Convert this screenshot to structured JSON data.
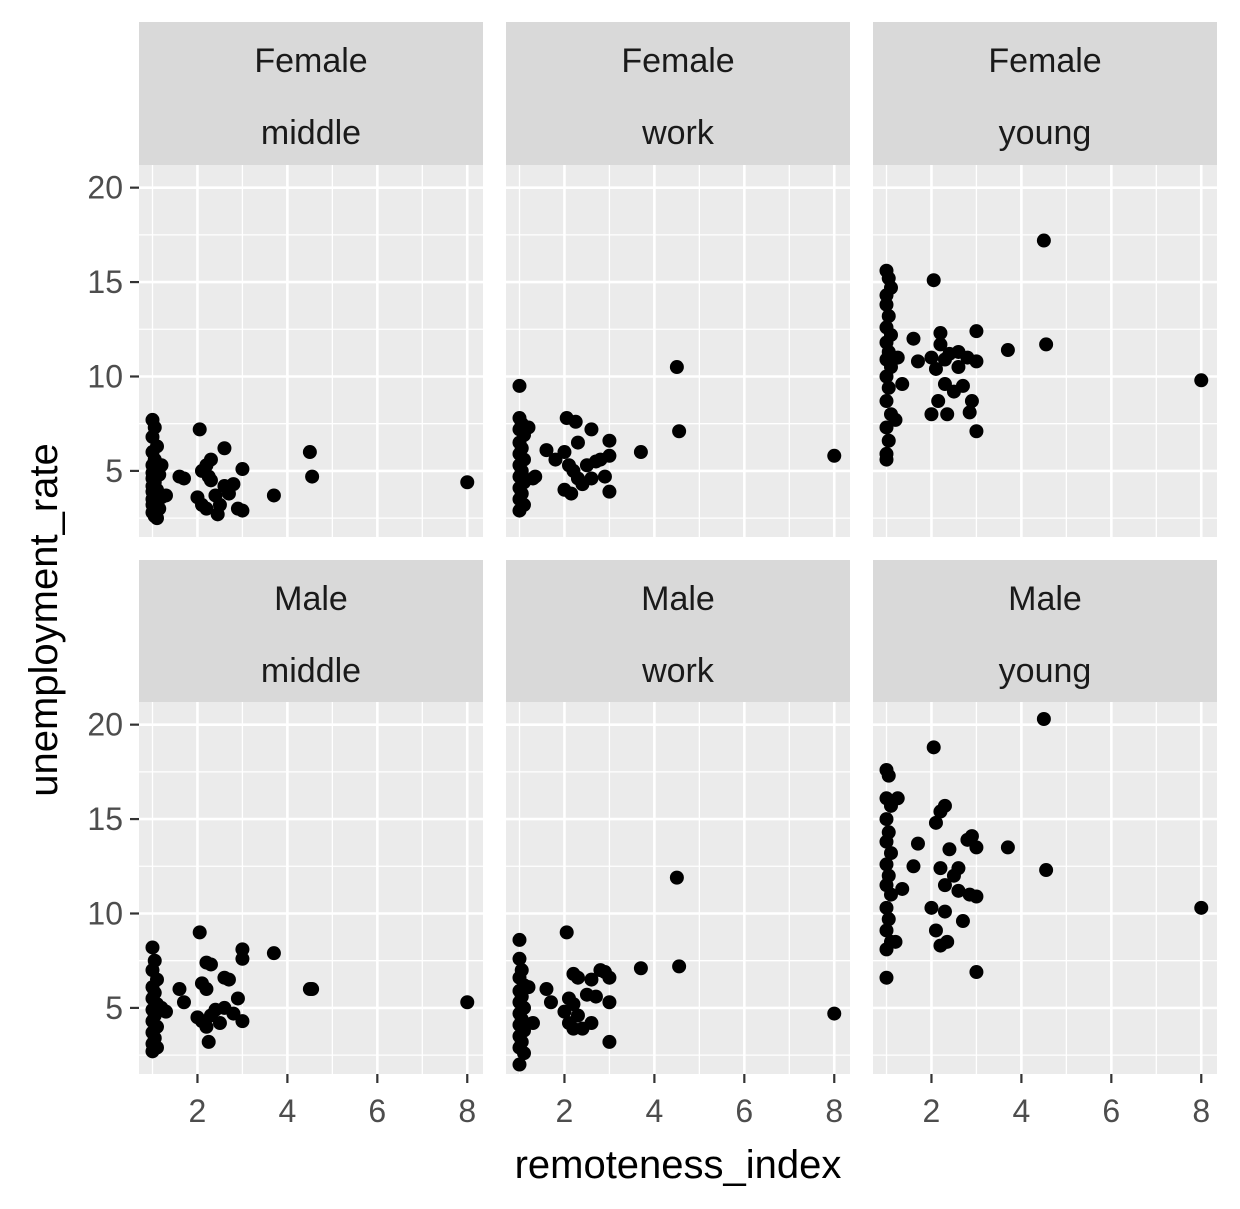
{
  "chart_data": {
    "type": "scatter",
    "facet_layout": "grid",
    "xlabel": "remoteness_index",
    "ylabel": "unemployment_rate",
    "x_ticks": [
      2,
      4,
      6,
      8
    ],
    "y_ticks": [
      5,
      10,
      15,
      20
    ],
    "xlim": [
      0.7,
      8.35
    ],
    "ylim": [
      1.5,
      21.2
    ],
    "colors": {
      "panel": "#ebebeb",
      "strip": "#d9d9d9",
      "grid": "#ffffff",
      "point": "#000000"
    },
    "panels": [
      {
        "label_top": "Female",
        "label_bottom": "middle",
        "points": [
          [
            1.0,
            7.7
          ],
          [
            1.05,
            7.3
          ],
          [
            1.0,
            6.8
          ],
          [
            1.1,
            6.3
          ],
          [
            1.0,
            6.0
          ],
          [
            1.05,
            5.6
          ],
          [
            1.0,
            5.3
          ],
          [
            1.1,
            5.1
          ],
          [
            1.0,
            4.9
          ],
          [
            1.15,
            4.8
          ],
          [
            1.0,
            4.6
          ],
          [
            1.05,
            4.4
          ],
          [
            1.0,
            4.2
          ],
          [
            1.1,
            4.0
          ],
          [
            1.0,
            3.9
          ],
          [
            1.05,
            3.7
          ],
          [
            1.0,
            3.5
          ],
          [
            1.1,
            3.4
          ],
          [
            1.0,
            3.2
          ],
          [
            1.15,
            3.0
          ],
          [
            1.0,
            2.8
          ],
          [
            1.05,
            2.6
          ],
          [
            1.1,
            2.5
          ],
          [
            1.2,
            3.6
          ],
          [
            1.3,
            3.7
          ],
          [
            1.2,
            5.3
          ],
          [
            1.6,
            4.7
          ],
          [
            1.7,
            4.6
          ],
          [
            2.05,
            7.2
          ],
          [
            2.1,
            5.0
          ],
          [
            2.2,
            5.3
          ],
          [
            2.3,
            5.6
          ],
          [
            2.0,
            3.6
          ],
          [
            2.1,
            3.2
          ],
          [
            2.2,
            3.0
          ],
          [
            2.3,
            4.5
          ],
          [
            2.25,
            4.7
          ],
          [
            2.4,
            3.7
          ],
          [
            2.5,
            3.2
          ],
          [
            2.6,
            6.2
          ],
          [
            2.6,
            4.2
          ],
          [
            2.7,
            3.8
          ],
          [
            2.8,
            4.3
          ],
          [
            2.9,
            3.0
          ],
          [
            3.0,
            5.1
          ],
          [
            3.0,
            2.9
          ],
          [
            2.45,
            2.7
          ],
          [
            3.7,
            3.7
          ],
          [
            4.5,
            6.0
          ],
          [
            4.55,
            4.7
          ],
          [
            8.0,
            4.4
          ]
        ]
      },
      {
        "label_top": "Female",
        "label_bottom": "work",
        "points": [
          [
            1.0,
            9.5
          ],
          [
            1.0,
            7.8
          ],
          [
            1.05,
            7.5
          ],
          [
            1.0,
            7.2
          ],
          [
            1.1,
            6.9
          ],
          [
            1.0,
            6.5
          ],
          [
            1.05,
            6.2
          ],
          [
            1.0,
            5.9
          ],
          [
            1.1,
            5.6
          ],
          [
            1.0,
            5.3
          ],
          [
            1.05,
            5.0
          ],
          [
            1.0,
            4.7
          ],
          [
            1.1,
            4.4
          ],
          [
            1.0,
            4.1
          ],
          [
            1.05,
            3.8
          ],
          [
            1.0,
            3.5
          ],
          [
            1.1,
            3.2
          ],
          [
            1.0,
            2.9
          ],
          [
            1.2,
            7.3
          ],
          [
            1.3,
            4.6
          ],
          [
            1.35,
            4.7
          ],
          [
            1.6,
            6.1
          ],
          [
            1.8,
            5.6
          ],
          [
            2.0,
            6.0
          ],
          [
            2.05,
            7.8
          ],
          [
            2.25,
            7.6
          ],
          [
            2.1,
            5.3
          ],
          [
            2.2,
            5.0
          ],
          [
            2.3,
            6.5
          ],
          [
            2.0,
            4.0
          ],
          [
            2.15,
            3.8
          ],
          [
            2.3,
            4.6
          ],
          [
            2.4,
            4.3
          ],
          [
            2.5,
            5.3
          ],
          [
            2.6,
            7.2
          ],
          [
            2.6,
            4.6
          ],
          [
            2.7,
            5.5
          ],
          [
            2.8,
            5.6
          ],
          [
            2.9,
            4.7
          ],
          [
            3.0,
            6.6
          ],
          [
            3.0,
            5.8
          ],
          [
            3.0,
            3.9
          ],
          [
            3.7,
            6.0
          ],
          [
            4.5,
            10.5
          ],
          [
            4.55,
            7.1
          ],
          [
            8.0,
            5.8
          ]
        ]
      },
      {
        "label_top": "Female",
        "label_bottom": "young",
        "points": [
          [
            1.0,
            15.6
          ],
          [
            1.05,
            15.2
          ],
          [
            1.0,
            14.3
          ],
          [
            1.1,
            14.7
          ],
          [
            1.0,
            13.8
          ],
          [
            1.05,
            13.2
          ],
          [
            1.0,
            12.6
          ],
          [
            1.1,
            12.2
          ],
          [
            1.0,
            11.8
          ],
          [
            1.05,
            11.3
          ],
          [
            1.0,
            10.9
          ],
          [
            1.1,
            10.5
          ],
          [
            1.0,
            10.0
          ],
          [
            1.05,
            9.4
          ],
          [
            1.0,
            8.7
          ],
          [
            1.1,
            8.0
          ],
          [
            1.0,
            7.3
          ],
          [
            1.05,
            6.6
          ],
          [
            1.0,
            5.9
          ],
          [
            1.0,
            5.6
          ],
          [
            1.2,
            7.7
          ],
          [
            1.25,
            11.0
          ],
          [
            1.35,
            9.6
          ],
          [
            1.6,
            12.0
          ],
          [
            1.7,
            10.8
          ],
          [
            2.05,
            15.1
          ],
          [
            2.0,
            11.0
          ],
          [
            2.1,
            10.4
          ],
          [
            2.2,
            12.3
          ],
          [
            2.2,
            11.7
          ],
          [
            2.3,
            10.9
          ],
          [
            2.0,
            8.0
          ],
          [
            2.15,
            8.7
          ],
          [
            2.3,
            9.6
          ],
          [
            2.35,
            8.0
          ],
          [
            2.4,
            11.2
          ],
          [
            2.5,
            9.2
          ],
          [
            2.6,
            11.3
          ],
          [
            2.6,
            10.5
          ],
          [
            2.7,
            9.5
          ],
          [
            2.8,
            11.0
          ],
          [
            2.85,
            8.1
          ],
          [
            2.9,
            8.7
          ],
          [
            3.0,
            12.4
          ],
          [
            3.0,
            10.8
          ],
          [
            3.0,
            7.1
          ],
          [
            3.7,
            11.4
          ],
          [
            4.5,
            17.2
          ],
          [
            4.55,
            11.7
          ],
          [
            8.0,
            9.8
          ]
        ]
      },
      {
        "label_top": "Male",
        "label_bottom": "middle",
        "points": [
          [
            1.0,
            8.2
          ],
          [
            1.05,
            7.5
          ],
          [
            1.0,
            7.0
          ],
          [
            1.1,
            6.5
          ],
          [
            1.0,
            6.1
          ],
          [
            1.05,
            5.8
          ],
          [
            1.0,
            5.5
          ],
          [
            1.1,
            5.2
          ],
          [
            1.0,
            4.9
          ],
          [
            1.05,
            4.6
          ],
          [
            1.0,
            4.3
          ],
          [
            1.1,
            4.0
          ],
          [
            1.0,
            3.7
          ],
          [
            1.05,
            3.4
          ],
          [
            1.0,
            3.1
          ],
          [
            1.1,
            2.9
          ],
          [
            1.0,
            2.7
          ],
          [
            1.2,
            5.0
          ],
          [
            1.3,
            4.8
          ],
          [
            1.6,
            6.0
          ],
          [
            1.7,
            5.3
          ],
          [
            2.05,
            9.0
          ],
          [
            2.2,
            7.4
          ],
          [
            2.3,
            7.3
          ],
          [
            2.1,
            6.3
          ],
          [
            2.2,
            6.0
          ],
          [
            2.0,
            4.5
          ],
          [
            2.1,
            4.3
          ],
          [
            2.2,
            4.0
          ],
          [
            2.3,
            4.6
          ],
          [
            2.25,
            3.2
          ],
          [
            2.4,
            4.9
          ],
          [
            2.5,
            4.2
          ],
          [
            2.6,
            6.6
          ],
          [
            2.6,
            5.0
          ],
          [
            2.7,
            6.5
          ],
          [
            2.8,
            4.7
          ],
          [
            2.9,
            5.5
          ],
          [
            3.0,
            8.1
          ],
          [
            3.0,
            7.6
          ],
          [
            3.0,
            4.3
          ],
          [
            3.7,
            7.9
          ],
          [
            4.5,
            6.0
          ],
          [
            4.55,
            6.0
          ],
          [
            8.0,
            5.3
          ]
        ]
      },
      {
        "label_top": "Male",
        "label_bottom": "work",
        "points": [
          [
            1.0,
            8.6
          ],
          [
            1.0,
            7.6
          ],
          [
            1.05,
            7.0
          ],
          [
            1.0,
            6.6
          ],
          [
            1.1,
            6.2
          ],
          [
            1.0,
            5.9
          ],
          [
            1.05,
            5.6
          ],
          [
            1.0,
            5.3
          ],
          [
            1.1,
            5.0
          ],
          [
            1.0,
            4.7
          ],
          [
            1.05,
            4.4
          ],
          [
            1.0,
            4.1
          ],
          [
            1.1,
            3.8
          ],
          [
            1.0,
            3.5
          ],
          [
            1.05,
            3.2
          ],
          [
            1.0,
            2.9
          ],
          [
            1.1,
            2.6
          ],
          [
            1.0,
            2.0
          ],
          [
            1.2,
            6.1
          ],
          [
            1.3,
            4.2
          ],
          [
            1.6,
            6.0
          ],
          [
            1.7,
            5.3
          ],
          [
            2.05,
            9.0
          ],
          [
            2.2,
            6.8
          ],
          [
            2.3,
            6.6
          ],
          [
            2.1,
            5.5
          ],
          [
            2.2,
            5.2
          ],
          [
            2.0,
            4.8
          ],
          [
            2.1,
            4.2
          ],
          [
            2.2,
            3.9
          ],
          [
            2.3,
            4.6
          ],
          [
            2.4,
            3.9
          ],
          [
            2.5,
            5.7
          ],
          [
            2.6,
            6.5
          ],
          [
            2.6,
            4.2
          ],
          [
            2.7,
            5.6
          ],
          [
            2.8,
            7.0
          ],
          [
            2.9,
            6.9
          ],
          [
            3.0,
            6.6
          ],
          [
            3.0,
            5.3
          ],
          [
            3.0,
            3.2
          ],
          [
            3.7,
            7.1
          ],
          [
            4.5,
            11.9
          ],
          [
            4.55,
            7.2
          ],
          [
            8.0,
            4.7
          ]
        ]
      },
      {
        "label_top": "Male",
        "label_bottom": "young",
        "points": [
          [
            1.0,
            17.6
          ],
          [
            1.05,
            17.3
          ],
          [
            1.0,
            16.1
          ],
          [
            1.1,
            15.7
          ],
          [
            1.0,
            15.0
          ],
          [
            1.05,
            14.3
          ],
          [
            1.0,
            13.8
          ],
          [
            1.1,
            13.2
          ],
          [
            1.0,
            12.6
          ],
          [
            1.05,
            12.0
          ],
          [
            1.0,
            11.5
          ],
          [
            1.1,
            11.0
          ],
          [
            1.0,
            10.3
          ],
          [
            1.05,
            9.7
          ],
          [
            1.0,
            9.1
          ],
          [
            1.1,
            8.5
          ],
          [
            1.0,
            8.1
          ],
          [
            1.0,
            6.6
          ],
          [
            1.2,
            8.5
          ],
          [
            1.25,
            16.1
          ],
          [
            1.35,
            11.3
          ],
          [
            1.6,
            12.5
          ],
          [
            1.7,
            13.7
          ],
          [
            2.05,
            18.8
          ],
          [
            2.2,
            15.4
          ],
          [
            2.3,
            15.7
          ],
          [
            2.1,
            14.8
          ],
          [
            2.2,
            12.4
          ],
          [
            2.3,
            11.5
          ],
          [
            2.0,
            10.3
          ],
          [
            2.1,
            9.1
          ],
          [
            2.2,
            8.3
          ],
          [
            2.3,
            10.1
          ],
          [
            2.35,
            8.5
          ],
          [
            2.4,
            13.4
          ],
          [
            2.5,
            12.0
          ],
          [
            2.6,
            12.4
          ],
          [
            2.6,
            11.2
          ],
          [
            2.7,
            9.6
          ],
          [
            2.8,
            13.9
          ],
          [
            2.85,
            11.0
          ],
          [
            2.9,
            14.1
          ],
          [
            3.0,
            13.5
          ],
          [
            3.0,
            10.9
          ],
          [
            3.0,
            6.9
          ],
          [
            3.7,
            13.5
          ],
          [
            4.5,
            20.3
          ],
          [
            4.55,
            12.3
          ],
          [
            8.0,
            10.3
          ]
        ]
      }
    ]
  }
}
